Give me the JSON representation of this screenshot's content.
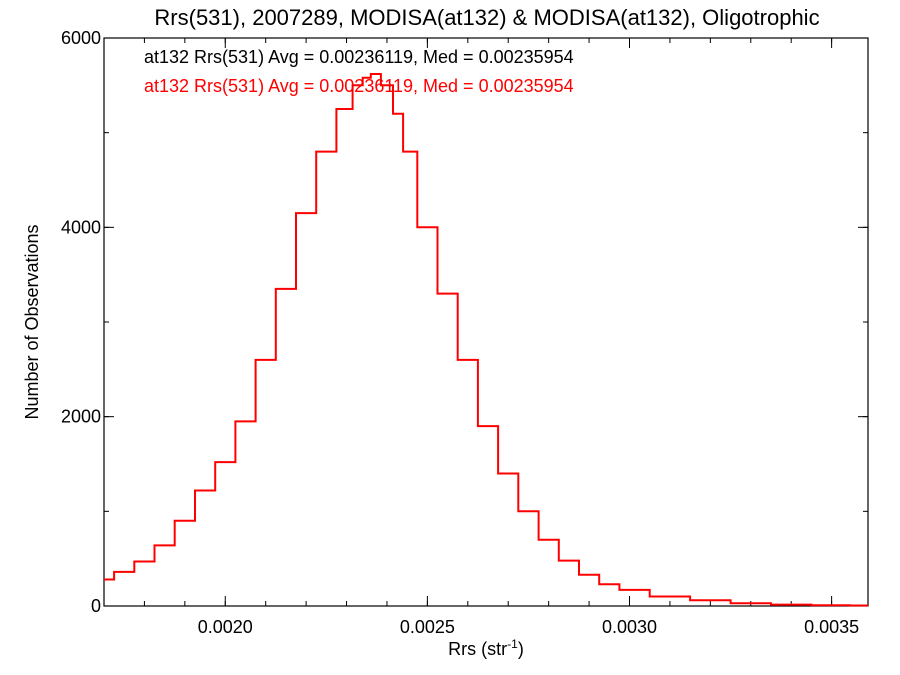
{
  "chart_data": {
    "type": "line",
    "step": true,
    "title": "Rrs(531), 2007289, MODISA(at132) & MODISA(at132), Oligotrophic",
    "xlabel": "Rrs (str",
    "xlabel_sup": "-1",
    "xlabel_end": ")",
    "ylabel": "Number of Observations",
    "xlim": [
      0.0017,
      0.00359
    ],
    "ylim": [
      0,
      6000
    ],
    "grid": false,
    "x_ticks": [
      {
        "value": 0.002,
        "label": "0.0020"
      },
      {
        "value": 0.0025,
        "label": "0.0025"
      },
      {
        "value": 0.003,
        "label": "0.0030"
      },
      {
        "value": 0.0035,
        "label": "0.0035"
      }
    ],
    "y_ticks": [
      {
        "value": 0,
        "label": "0"
      },
      {
        "value": 2000,
        "label": "2000"
      },
      {
        "value": 4000,
        "label": "4000"
      },
      {
        "value": 6000,
        "label": "6000"
      }
    ],
    "x_minor_step": 0.0001,
    "y_minor_step": 1000,
    "annotations": [
      {
        "text": "at132 Rrs(531) Avg = 0.00236119, Med = 0.00235954",
        "color": "#000000"
      },
      {
        "text": "at132 Rrs(531) Avg = 0.00236119, Med = 0.00235954",
        "color": "#ff0000"
      }
    ],
    "series": [
      {
        "color": "#ff0000",
        "points": [
          [
            0.0017,
            280
          ],
          [
            0.00175,
            360
          ],
          [
            0.0018,
            470
          ],
          [
            0.00185,
            640
          ],
          [
            0.0019,
            900
          ],
          [
            0.00195,
            1220
          ],
          [
            0.002,
            1520
          ],
          [
            0.00205,
            1950
          ],
          [
            0.0021,
            2600
          ],
          [
            0.00215,
            3350
          ],
          [
            0.0022,
            4150
          ],
          [
            0.00225,
            4800
          ],
          [
            0.0023,
            5250
          ],
          [
            0.00233,
            5500
          ],
          [
            0.00235,
            5580
          ],
          [
            0.00237,
            5620
          ],
          [
            0.0024,
            5500
          ],
          [
            0.00243,
            5200
          ],
          [
            0.00245,
            4800
          ],
          [
            0.0025,
            4000
          ],
          [
            0.00255,
            3300
          ],
          [
            0.0026,
            2600
          ],
          [
            0.00265,
            1900
          ],
          [
            0.0027,
            1400
          ],
          [
            0.00275,
            1000
          ],
          [
            0.0028,
            700
          ],
          [
            0.00285,
            480
          ],
          [
            0.0029,
            330
          ],
          [
            0.00295,
            230
          ],
          [
            0.003,
            170
          ],
          [
            0.0031,
            100
          ],
          [
            0.0032,
            60
          ],
          [
            0.0033,
            30
          ],
          [
            0.0034,
            15
          ],
          [
            0.0035,
            8
          ],
          [
            0.00359,
            5
          ]
        ]
      }
    ]
  }
}
